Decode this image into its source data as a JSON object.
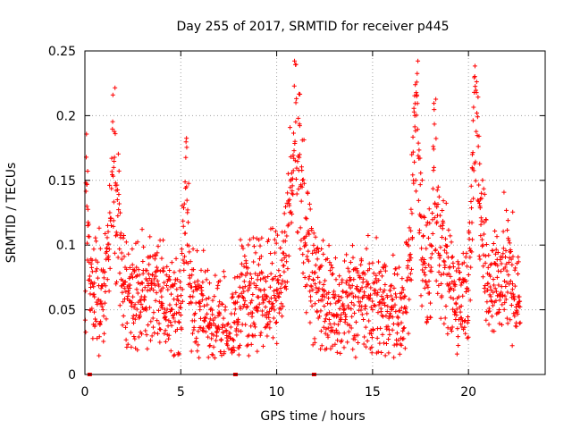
{
  "chart_data": {
    "type": "scatter",
    "title": "Day 255 of 2017, SRMTID for receiver p445",
    "xlabel": "GPS time / hours",
    "ylabel": "SRMTID / TECUs",
    "xlim": [
      0,
      24
    ],
    "ylim": [
      0,
      0.25
    ],
    "xticks": [
      0,
      5,
      10,
      15,
      20
    ],
    "xtick_labels": [
      "0",
      "5",
      "10",
      "15",
      "20"
    ],
    "yticks": [
      0,
      0.05,
      0.1,
      0.15,
      0.2,
      0.25
    ],
    "ytick_labels": [
      "0",
      "0.05",
      "0.1",
      "0.15",
      "0.2",
      "0.25"
    ],
    "grid": true,
    "marker": "+",
    "color": "#ff0000",
    "series": [
      {
        "name": "SRMTID p445",
        "anchor_points": [
          [
            0.05,
            0.148
          ],
          [
            0.1,
            0.13
          ],
          [
            0.15,
            0.115
          ],
          [
            0.3,
            0.07
          ],
          [
            0.5,
            0.06
          ],
          [
            0.8,
            0.055
          ],
          [
            1.0,
            0.07
          ],
          [
            1.2,
            0.09
          ],
          [
            1.5,
            0.16
          ],
          [
            1.6,
            0.148
          ],
          [
            2.0,
            0.07
          ],
          [
            2.5,
            0.06
          ],
          [
            3.0,
            0.065
          ],
          [
            3.5,
            0.07
          ],
          [
            4.0,
            0.06
          ],
          [
            4.5,
            0.05
          ],
          [
            5.0,
            0.055
          ],
          [
            5.3,
            0.145
          ],
          [
            5.5,
            0.06
          ],
          [
            6.0,
            0.05
          ],
          [
            6.5,
            0.04
          ],
          [
            7.0,
            0.035
          ],
          [
            7.4,
            0.03
          ],
          [
            7.5,
            0.02
          ],
          [
            7.8,
            0.04
          ],
          [
            8.0,
            0.06
          ],
          [
            8.5,
            0.065
          ],
          [
            9.0,
            0.06
          ],
          [
            9.5,
            0.06
          ],
          [
            10.0,
            0.065
          ],
          [
            10.4,
            0.09
          ],
          [
            10.8,
            0.14
          ],
          [
            11.0,
            0.21
          ],
          [
            11.2,
            0.17
          ],
          [
            11.5,
            0.1
          ],
          [
            12.0,
            0.07
          ],
          [
            12.5,
            0.06
          ],
          [
            13.0,
            0.045
          ],
          [
            13.5,
            0.05
          ],
          [
            14.0,
            0.06
          ],
          [
            14.5,
            0.06
          ],
          [
            15.0,
            0.05
          ],
          [
            15.5,
            0.055
          ],
          [
            16.0,
            0.05
          ],
          [
            16.5,
            0.04
          ],
          [
            17.0,
            0.09
          ],
          [
            17.2,
            0.2
          ],
          [
            17.3,
            0.215
          ],
          [
            17.6,
            0.09
          ],
          [
            18.0,
            0.08
          ],
          [
            18.2,
            0.16
          ],
          [
            18.5,
            0.09
          ],
          [
            19.0,
            0.07
          ],
          [
            19.5,
            0.06
          ],
          [
            20.0,
            0.065
          ],
          [
            20.2,
            0.17
          ],
          [
            20.3,
            0.218
          ],
          [
            20.6,
            0.13
          ],
          [
            21.0,
            0.07
          ],
          [
            21.5,
            0.075
          ],
          [
            22.0,
            0.08
          ],
          [
            22.3,
            0.07
          ],
          [
            22.6,
            0.06
          ],
          [
            22.7,
            0.04
          ]
        ]
      }
    ],
    "baseline_markers_x": [
      0.25,
      7.85,
      11.95
    ]
  }
}
